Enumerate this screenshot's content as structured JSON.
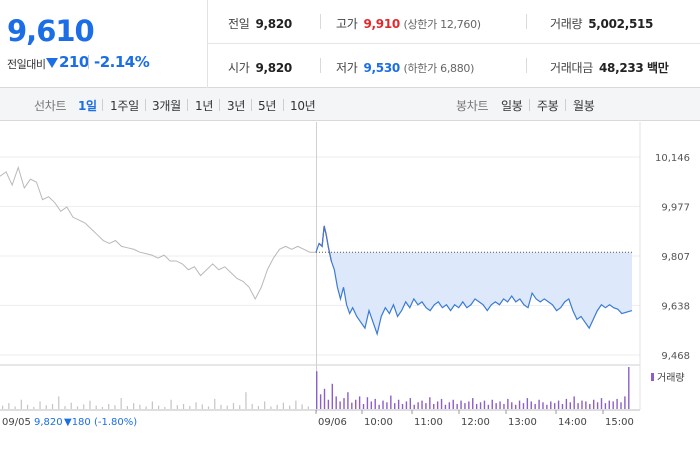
{
  "summary": {
    "price": "9,610",
    "change_label": "전일대비",
    "change_abs": "210",
    "change_pct": "-2.14%",
    "colors": {
      "up": "#e3282b",
      "down": "#1b6ee6"
    },
    "arrow_icon": "down-triangle-icon",
    "prev_close": {
      "label": "전일",
      "value": "9,820"
    },
    "high": {
      "label": "고가",
      "value": "9,910",
      "limit": "(상한가 12,760)"
    },
    "volume": {
      "label": "거래량",
      "value": "5,002,515"
    },
    "open": {
      "label": "시가",
      "value": "9,820"
    },
    "low": {
      "label": "저가",
      "value": "9,530",
      "limit": "(하한가 6,880)"
    },
    "amount": {
      "label": "거래대금",
      "value": "48,233",
      "unit": "백만"
    }
  },
  "toolbar": {
    "line_chart_title": "선차트",
    "line_periods": [
      "1일",
      "1주일",
      "3개월",
      "1년",
      "3년",
      "5년",
      "10년"
    ],
    "active_period": "1일",
    "candle_chart_title": "봉차트",
    "candle_periods": [
      "일봉",
      "주봉",
      "월봉"
    ]
  },
  "chart_data": {
    "type": "line",
    "y_ticks": [
      "10,146",
      "9,977",
      "9,807",
      "9,638",
      "9,468"
    ],
    "ylim": [
      9468,
      10146
    ],
    "reference_price": 9820,
    "x_ticks": [
      "09/06",
      "10:00",
      "11:00",
      "12:00",
      "13:00",
      "14:00",
      "15:00"
    ],
    "prev_day": {
      "date": "09/05",
      "close": "9,820",
      "change": "▼180",
      "change_pct": "(-1.80%)"
    },
    "previous_session": {
      "name": "09/05",
      "points": [
        [
          0,
          10080
        ],
        [
          6,
          10095
        ],
        [
          12,
          10050
        ],
        [
          18,
          10110
        ],
        [
          24,
          10040
        ],
        [
          30,
          10070
        ],
        [
          36,
          10060
        ],
        [
          42,
          10000
        ],
        [
          48,
          10010
        ],
        [
          54,
          9990
        ],
        [
          60,
          9960
        ],
        [
          66,
          9975
        ],
        [
          72,
          9940
        ],
        [
          78,
          9930
        ],
        [
          84,
          9920
        ],
        [
          90,
          9900
        ],
        [
          96,
          9880
        ],
        [
          102,
          9860
        ],
        [
          108,
          9850
        ],
        [
          114,
          9860
        ],
        [
          120,
          9840
        ],
        [
          126,
          9835
        ],
        [
          132,
          9830
        ],
        [
          138,
          9820
        ],
        [
          144,
          9815
        ],
        [
          150,
          9810
        ],
        [
          156,
          9800
        ],
        [
          162,
          9810
        ],
        [
          168,
          9790
        ],
        [
          174,
          9790
        ],
        [
          180,
          9780
        ],
        [
          186,
          9760
        ],
        [
          192,
          9770
        ],
        [
          198,
          9740
        ],
        [
          204,
          9760
        ],
        [
          210,
          9780
        ],
        [
          216,
          9760
        ],
        [
          222,
          9770
        ],
        [
          228,
          9750
        ],
        [
          234,
          9730
        ],
        [
          240,
          9720
        ],
        [
          246,
          9700
        ],
        [
          252,
          9660
        ],
        [
          258,
          9700
        ],
        [
          264,
          9760
        ],
        [
          270,
          9800
        ],
        [
          276,
          9830
        ],
        [
          282,
          9840
        ],
        [
          288,
          9830
        ],
        [
          294,
          9840
        ],
        [
          300,
          9830
        ],
        [
          306,
          9820
        ],
        [
          312,
          9820
        ]
      ]
    },
    "today_session": {
      "name": "09/06",
      "points": [
        [
          0,
          9820
        ],
        [
          3,
          9850
        ],
        [
          6,
          9840
        ],
        [
          8,
          9910
        ],
        [
          10,
          9880
        ],
        [
          12,
          9840
        ],
        [
          15,
          9790
        ],
        [
          18,
          9760
        ],
        [
          21,
          9700
        ],
        [
          24,
          9660
        ],
        [
          27,
          9700
        ],
        [
          30,
          9640
        ],
        [
          33,
          9610
        ],
        [
          36,
          9630
        ],
        [
          40,
          9600
        ],
        [
          44,
          9580
        ],
        [
          48,
          9560
        ],
        [
          52,
          9620
        ],
        [
          56,
          9580
        ],
        [
          60,
          9540
        ],
        [
          64,
          9600
        ],
        [
          68,
          9630
        ],
        [
          72,
          9610
        ],
        [
          76,
          9640
        ],
        [
          80,
          9600
        ],
        [
          84,
          9620
        ],
        [
          88,
          9650
        ],
        [
          92,
          9630
        ],
        [
          96,
          9660
        ],
        [
          100,
          9640
        ],
        [
          104,
          9650
        ],
        [
          108,
          9630
        ],
        [
          112,
          9620
        ],
        [
          116,
          9640
        ],
        [
          120,
          9650
        ],
        [
          124,
          9630
        ],
        [
          128,
          9640
        ],
        [
          132,
          9620
        ],
        [
          136,
          9640
        ],
        [
          140,
          9630
        ],
        [
          144,
          9650
        ],
        [
          148,
          9630
        ],
        [
          152,
          9640
        ],
        [
          156,
          9660
        ],
        [
          160,
          9650
        ],
        [
          164,
          9640
        ],
        [
          168,
          9620
        ],
        [
          172,
          9640
        ],
        [
          176,
          9650
        ],
        [
          180,
          9640
        ],
        [
          184,
          9660
        ],
        [
          188,
          9650
        ],
        [
          192,
          9670
        ],
        [
          196,
          9650
        ],
        [
          200,
          9660
        ],
        [
          204,
          9640
        ],
        [
          208,
          9630
        ],
        [
          212,
          9680
        ],
        [
          216,
          9660
        ],
        [
          220,
          9650
        ],
        [
          224,
          9660
        ],
        [
          228,
          9650
        ],
        [
          232,
          9640
        ],
        [
          236,
          9620
        ],
        [
          240,
          9630
        ],
        [
          244,
          9650
        ],
        [
          248,
          9660
        ],
        [
          252,
          9620
        ],
        [
          256,
          9590
        ],
        [
          260,
          9600
        ],
        [
          264,
          9580
        ],
        [
          268,
          9560
        ],
        [
          272,
          9590
        ],
        [
          276,
          9620
        ],
        [
          280,
          9640
        ],
        [
          284,
          9630
        ],
        [
          288,
          9640
        ],
        [
          292,
          9630
        ],
        [
          296,
          9625
        ],
        [
          300,
          9610
        ],
        [
          305,
          9615
        ],
        [
          310,
          9620
        ]
      ]
    },
    "volume": {
      "legend": "거래량",
      "max": 100,
      "prev_bars": [
        8,
        14,
        6,
        22,
        10,
        5,
        18,
        9,
        12,
        30,
        7,
        15,
        6,
        11,
        20,
        8,
        5,
        12,
        9,
        26,
        7,
        14,
        10,
        6,
        18,
        8,
        5,
        22,
        9,
        12,
        7,
        16,
        11,
        6,
        24,
        10,
        8,
        14,
        9,
        40,
        12,
        7,
        18,
        6,
        10,
        15,
        8,
        20,
        11,
        6
      ],
      "today_bars": [
        90,
        35,
        48,
        22,
        60,
        30,
        18,
        26,
        40,
        15,
        22,
        30,
        12,
        28,
        18,
        24,
        10,
        20,
        16,
        32,
        14,
        22,
        12,
        18,
        26,
        10,
        16,
        20,
        14,
        28,
        12,
        18,
        24,
        10,
        16,
        22,
        12,
        20,
        14,
        18,
        26,
        12,
        16,
        20,
        10,
        22,
        14,
        18,
        12,
        24,
        16,
        10,
        20,
        14,
        26,
        18,
        12,
        22,
        16,
        10,
        18,
        14,
        20,
        12,
        24,
        16,
        30,
        14,
        20,
        18,
        12,
        22,
        16,
        26,
        14,
        20,
        18,
        24,
        16,
        30,
        100
      ]
    }
  }
}
